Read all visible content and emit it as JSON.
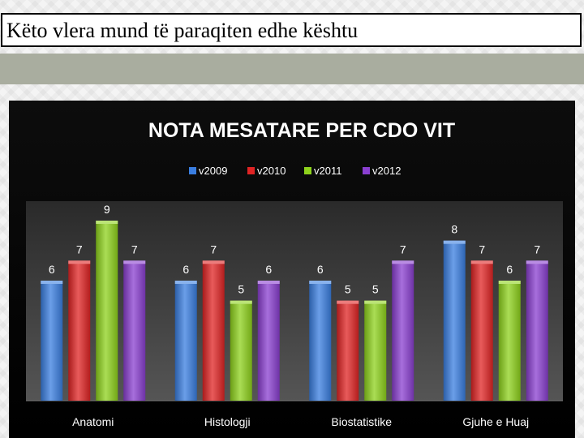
{
  "slide": {
    "title": "Këto vlera mund të paraqiten edhe kështu"
  },
  "chart_data": {
    "type": "bar",
    "title": "NOTA MESATARE PER CDO VIT",
    "categories": [
      "Anatomi",
      "Histologji",
      "Biostatistike",
      "Gjuhe e Huaj"
    ],
    "series": [
      {
        "name": "v2009",
        "color": "#3a7ee0",
        "values": [
          6,
          6,
          6,
          8
        ]
      },
      {
        "name": "v2010",
        "color": "#e02424",
        "values": [
          7,
          7,
          5,
          7
        ]
      },
      {
        "name": "v2011",
        "color": "#8ed21c",
        "values": [
          9,
          5,
          5,
          6
        ]
      },
      {
        "name": "v2012",
        "color": "#8a3fd0",
        "values": [
          7,
          6,
          7,
          7
        ]
      }
    ],
    "ylim": [
      0,
      10
    ],
    "xlabel": "",
    "ylabel": "",
    "legend": "top",
    "grid": false,
    "data_labels": true
  }
}
